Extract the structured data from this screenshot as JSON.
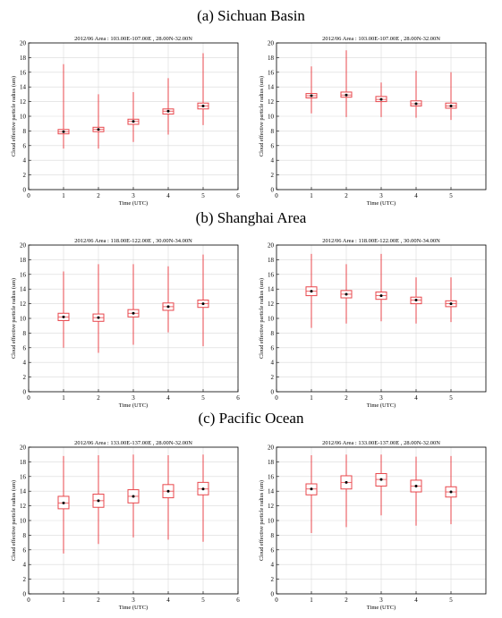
{
  "regions": [
    {
      "label": "(a) Sichuan Basin"
    },
    {
      "label": "(b) Shanghai Area"
    },
    {
      "label": "(c) Pacific Ocean"
    }
  ],
  "box_color": "#e8474c",
  "chart_data": [
    {
      "type": "box",
      "title": "2012/06    Area : 103.00E-107.00E , 28.00N-32.00N",
      "xlabel": "Time (UTC)",
      "ylabel": "Cloud effective particle radius (um)",
      "xlim": [
        0,
        6
      ],
      "ylim": [
        0,
        20
      ],
      "xticks": [
        0,
        1,
        2,
        3,
        4,
        5,
        6
      ],
      "yticks": [
        0,
        2,
        4,
        6,
        8,
        10,
        12,
        14,
        16,
        18,
        20
      ],
      "grid": true,
      "boxes": [
        {
          "x": 1,
          "min": 5.6,
          "q1": 7.6,
          "median": 7.9,
          "q3": 8.2,
          "max": 17.1
        },
        {
          "x": 2,
          "min": 5.6,
          "q1": 7.9,
          "median": 8.2,
          "q3": 8.5,
          "max": 13.0
        },
        {
          "x": 3,
          "min": 6.5,
          "q1": 8.9,
          "median": 9.3,
          "q3": 9.6,
          "max": 13.3
        },
        {
          "x": 4,
          "min": 7.5,
          "q1": 10.3,
          "median": 10.7,
          "q3": 11.0,
          "max": 15.2
        },
        {
          "x": 5,
          "min": 8.8,
          "q1": 11.0,
          "median": 11.4,
          "q3": 11.8,
          "max": 18.6
        }
      ]
    },
    {
      "type": "box",
      "title": "2012/06    Area : 103.00E-107.00E , 28.00N-32.00N",
      "xlabel": "Time (UTC)",
      "ylabel": "Cloud effective particle radius (um)",
      "xlim": [
        0,
        6
      ],
      "ylim": [
        0,
        20
      ],
      "xticks": [
        0,
        1,
        2,
        3,
        4,
        5
      ],
      "yticks": [
        0,
        2,
        4,
        6,
        8,
        10,
        12,
        14,
        16,
        18,
        20
      ],
      "grid": true,
      "boxes": [
        {
          "x": 1,
          "min": 10.4,
          "q1": 12.5,
          "median": 12.8,
          "q3": 13.1,
          "max": 16.8
        },
        {
          "x": 2,
          "min": 9.9,
          "q1": 12.6,
          "median": 12.9,
          "q3": 13.3,
          "max": 19.0
        },
        {
          "x": 3,
          "min": 9.9,
          "q1": 12.0,
          "median": 12.3,
          "q3": 12.7,
          "max": 14.6
        },
        {
          "x": 4,
          "min": 9.8,
          "q1": 11.4,
          "median": 11.7,
          "q3": 12.1,
          "max": 16.2
        },
        {
          "x": 5,
          "min": 9.5,
          "q1": 11.1,
          "median": 11.4,
          "q3": 11.8,
          "max": 16.0
        }
      ]
    },
    {
      "type": "box",
      "title": "2012/06    Area : 118.00E-122.00E , 30.00N-34.00N",
      "xlabel": "Time (UTC)",
      "ylabel": "Cloud effective particle radius (um)",
      "xlim": [
        0,
        6
      ],
      "ylim": [
        0,
        20
      ],
      "xticks": [
        0,
        1,
        2,
        3,
        4,
        5,
        6
      ],
      "yticks": [
        0,
        2,
        4,
        6,
        8,
        10,
        12,
        14,
        16,
        18,
        20
      ],
      "grid": true,
      "boxes": [
        {
          "x": 1,
          "min": 6.0,
          "q1": 9.7,
          "median": 10.2,
          "q3": 10.7,
          "max": 16.4
        },
        {
          "x": 2,
          "min": 5.3,
          "q1": 9.6,
          "median": 10.1,
          "q3": 10.6,
          "max": 17.4
        },
        {
          "x": 3,
          "min": 6.4,
          "q1": 10.2,
          "median": 10.7,
          "q3": 11.2,
          "max": 17.4
        },
        {
          "x": 4,
          "min": 8.1,
          "q1": 11.1,
          "median": 11.6,
          "q3": 12.1,
          "max": 17.1
        },
        {
          "x": 5,
          "min": 6.2,
          "q1": 11.5,
          "median": 12.0,
          "q3": 12.5,
          "max": 18.7
        }
      ]
    },
    {
      "type": "box",
      "title": "2012/06    Area : 118.00E-122.00E , 30.00N-34.00N",
      "xlabel": "Time (UTC)",
      "ylabel": "Cloud effective particle radius (um)",
      "xlim": [
        0,
        6
      ],
      "ylim": [
        0,
        20
      ],
      "xticks": [
        0,
        1,
        2,
        3,
        4,
        5
      ],
      "yticks": [
        0,
        2,
        4,
        6,
        8,
        10,
        12,
        14,
        16,
        18,
        20
      ],
      "grid": true,
      "boxes": [
        {
          "x": 1,
          "min": 8.7,
          "q1": 13.1,
          "median": 13.7,
          "q3": 14.3,
          "max": 18.8
        },
        {
          "x": 2,
          "min": 9.3,
          "q1": 12.8,
          "median": 13.3,
          "q3": 13.8,
          "max": 17.4
        },
        {
          "x": 3,
          "min": 9.6,
          "q1": 12.6,
          "median": 13.1,
          "q3": 13.6,
          "max": 18.8
        },
        {
          "x": 4,
          "min": 9.3,
          "q1": 12.0,
          "median": 12.5,
          "q3": 12.9,
          "max": 15.6
        },
        {
          "x": 5,
          "min": 9.5,
          "q1": 11.6,
          "median": 12.0,
          "q3": 12.4,
          "max": 15.6
        }
      ]
    },
    {
      "type": "box",
      "title": "2012/06    Area : 133.00E-137.00E , 28.00N-32.00N",
      "xlabel": "Time (UTC)",
      "ylabel": "Cloud effective particle radius (um)",
      "xlim": [
        0,
        6
      ],
      "ylim": [
        0,
        20
      ],
      "xticks": [
        0,
        1,
        2,
        3,
        4,
        5,
        6
      ],
      "yticks": [
        0,
        2,
        4,
        6,
        8,
        10,
        12,
        14,
        16,
        18,
        20
      ],
      "grid": true,
      "boxes": [
        {
          "x": 1,
          "min": 5.5,
          "q1": 11.6,
          "median": 12.4,
          "q3": 13.3,
          "max": 18.8
        },
        {
          "x": 2,
          "min": 6.8,
          "q1": 11.8,
          "median": 12.7,
          "q3": 13.6,
          "max": 18.9
        },
        {
          "x": 3,
          "min": 7.7,
          "q1": 12.4,
          "median": 13.3,
          "q3": 14.2,
          "max": 19.0
        },
        {
          "x": 4,
          "min": 7.4,
          "q1": 13.1,
          "median": 14.0,
          "q3": 14.9,
          "max": 18.9
        },
        {
          "x": 5,
          "min": 7.1,
          "q1": 13.5,
          "median": 14.3,
          "q3": 15.2,
          "max": 19.0
        }
      ]
    },
    {
      "type": "box",
      "title": "2012/06    Area : 133.00E-137.00E , 28.00N-32.00N",
      "xlabel": "Time (UTC)",
      "ylabel": "Cloud effective particle radius (um)",
      "xlim": [
        0,
        6
      ],
      "ylim": [
        0,
        20
      ],
      "xticks": [
        0,
        1,
        2,
        3,
        4,
        5
      ],
      "yticks": [
        0,
        2,
        4,
        6,
        8,
        10,
        12,
        14,
        16,
        18,
        20
      ],
      "grid": true,
      "boxes": [
        {
          "x": 1,
          "min": 8.3,
          "q1": 13.5,
          "median": 14.3,
          "q3": 15.0,
          "max": 18.9
        },
        {
          "x": 2,
          "min": 9.1,
          "q1": 14.3,
          "median": 15.2,
          "q3": 16.1,
          "max": 19.0
        },
        {
          "x": 3,
          "min": 10.7,
          "q1": 14.7,
          "median": 15.6,
          "q3": 16.4,
          "max": 19.0
        },
        {
          "x": 4,
          "min": 9.3,
          "q1": 13.9,
          "median": 14.7,
          "q3": 15.5,
          "max": 18.7
        },
        {
          "x": 5,
          "min": 9.5,
          "q1": 13.2,
          "median": 13.9,
          "q3": 14.6,
          "max": 18.8
        }
      ]
    }
  ]
}
